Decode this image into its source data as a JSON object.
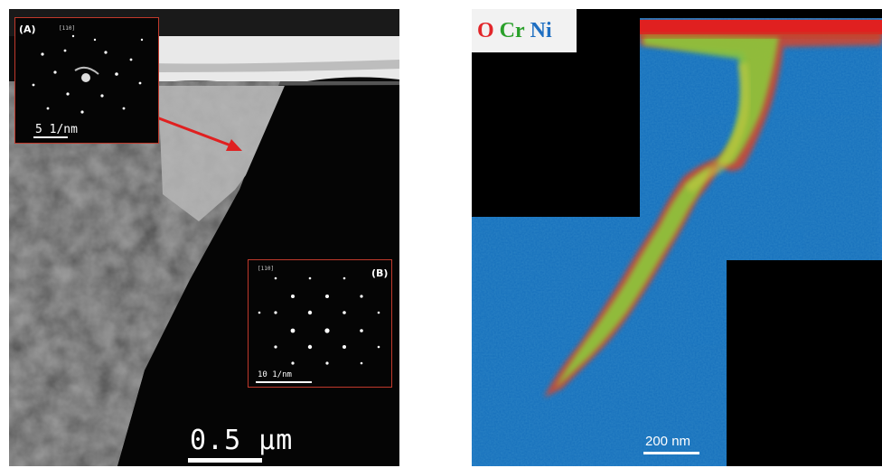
{
  "left_panel": {
    "inset_a": {
      "letter": "(A)",
      "zone_axis": "[110]",
      "scale_label": "5 1/nm"
    },
    "inset_b": {
      "letter": "(B)",
      "zone_axis": "[110]",
      "scale_label": "10 1/nm"
    },
    "scale_label": "0.5 μm",
    "arrow_color": "#e02020"
  },
  "right_panel": {
    "legend": [
      {
        "text": "O",
        "color": "#e2262a"
      },
      {
        "text": "Cr",
        "color": "#2aa02a"
      },
      {
        "text": "Ni",
        "color": "#1f6fc2"
      }
    ],
    "scale_label": "200 nm",
    "colors": {
      "ni_matrix": "#1a78c8",
      "oxide_cr": "#8cc83a",
      "oxide_o": "#e02020"
    }
  }
}
